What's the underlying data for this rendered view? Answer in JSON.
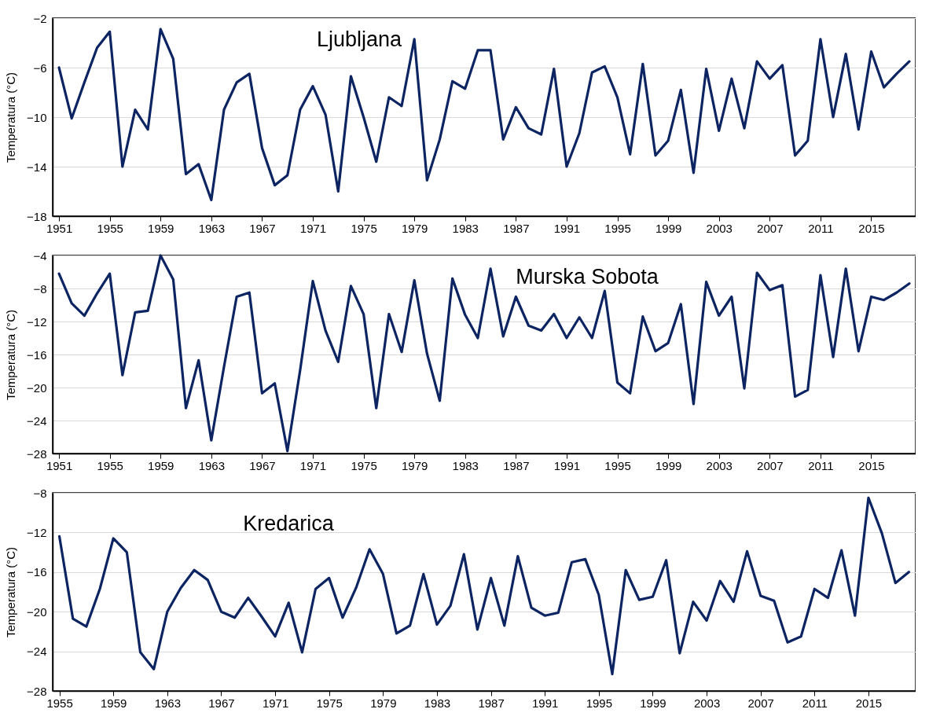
{
  "chart_data": [
    {
      "type": "line",
      "ylabel": "Temperatura (°C)",
      "annotations": [
        "Ljubljana"
      ],
      "grid": "y",
      "ylim": [
        -18,
        -2
      ],
      "yticks": [
        -18,
        -14,
        -10,
        -6,
        -2
      ],
      "color": "#0d2463",
      "categories": [
        "1951",
        null,
        null,
        null,
        "1955",
        null,
        null,
        null,
        "1959",
        null,
        null,
        null,
        "1963",
        null,
        null,
        null,
        "1967",
        null,
        null,
        null,
        "1971",
        null,
        null,
        null,
        "1975",
        null,
        null,
        null,
        "1979",
        null,
        null,
        null,
        "1983",
        null,
        null,
        null,
        "1987",
        null,
        null,
        null,
        "1991",
        null,
        null,
        null,
        "1995",
        null,
        null,
        null,
        "1999",
        null,
        null,
        null,
        "2003",
        null,
        null,
        null,
        "2007",
        null,
        null,
        null,
        "2011",
        null,
        null,
        null,
        "2015",
        null,
        null,
        null
      ],
      "values": [
        -6.0,
        -10.1,
        -7.2,
        -4.4,
        -3.1,
        -14.0,
        -9.4,
        -11.0,
        -2.9,
        -5.3,
        -14.6,
        -13.8,
        -16.7,
        -9.4,
        -7.2,
        -6.5,
        -12.5,
        -15.5,
        -14.7,
        -9.4,
        -7.5,
        -9.8,
        -16.0,
        -6.7,
        -10.0,
        -13.6,
        -8.4,
        -9.1,
        -3.7,
        -15.1,
        -11.8,
        -7.1,
        -7.7,
        -4.6,
        -4.6,
        -11.8,
        -9.2,
        -10.9,
        -11.4,
        -6.1,
        -14.0,
        -11.3,
        -6.4,
        -5.9,
        -8.4,
        -13.0,
        -5.7,
        -13.1,
        -11.9,
        -7.8,
        -14.5,
        -6.1,
        -11.1,
        -6.9,
        -10.9,
        -5.5,
        -6.9,
        -5.8,
        -13.1,
        -11.9,
        -3.7,
        -10.0,
        -4.9,
        -11.0,
        -4.7,
        -7.6,
        -6.5,
        -5.5
      ]
    },
    {
      "type": "line",
      "ylabel": "Temperatura (°C)",
      "annotations": [
        "Murska Sobota"
      ],
      "grid": "y",
      "ylim": [
        -28,
        -4
      ],
      "yticks": [
        -28,
        -24,
        -20,
        -16,
        -12,
        -8,
        -4
      ],
      "color": "#0d2463",
      "categories": [
        "1951",
        null,
        null,
        null,
        "1955",
        null,
        null,
        null,
        "1959",
        null,
        null,
        null,
        "1963",
        null,
        null,
        null,
        "1967",
        null,
        null,
        null,
        "1971",
        null,
        null,
        null,
        "1975",
        null,
        null,
        null,
        "1979",
        null,
        null,
        null,
        "1983",
        null,
        null,
        null,
        "1987",
        null,
        null,
        null,
        "1991",
        null,
        null,
        null,
        "1995",
        null,
        null,
        null,
        "1999",
        null,
        null,
        null,
        "2003",
        null,
        null,
        null,
        "2007",
        null,
        null,
        null,
        "2011",
        null,
        null,
        null,
        "2015",
        null,
        null,
        null
      ],
      "values": [
        -6.2,
        -9.8,
        -11.3,
        -8.6,
        -6.2,
        -18.5,
        -10.9,
        -10.7,
        -4.0,
        -6.9,
        -22.5,
        -16.7,
        -26.4,
        -17.5,
        -9.0,
        -8.5,
        -20.7,
        -19.5,
        -27.7,
        -17.9,
        -7.1,
        -13.1,
        -16.9,
        -7.7,
        -11.1,
        -22.5,
        -11.1,
        -15.7,
        -7.0,
        -15.9,
        -21.6,
        -6.8,
        -11.2,
        -14.0,
        -5.6,
        -13.8,
        -9.0,
        -12.5,
        -13.1,
        -11.1,
        -14.0,
        -11.5,
        -14.0,
        -8.3,
        -19.4,
        -20.7,
        -11.4,
        -15.6,
        -14.6,
        -9.9,
        -22.0,
        -7.2,
        -11.3,
        -9.0,
        -20.1,
        -6.1,
        -8.2,
        -7.6,
        -21.1,
        -20.3,
        -6.4,
        -16.3,
        -5.6,
        -15.6,
        -9.0,
        -9.4,
        -8.5,
        -7.4
      ]
    },
    {
      "type": "line",
      "ylabel": "Temperatura (°C)",
      "annotations": [
        "Kredarica"
      ],
      "grid": "y",
      "ylim": [
        -28,
        -8
      ],
      "yticks": [
        -28,
        -24,
        -20,
        -16,
        -12,
        -8
      ],
      "color": "#0d2463",
      "categories": [
        "1955",
        null,
        null,
        null,
        "1959",
        null,
        null,
        null,
        "1963",
        null,
        null,
        null,
        "1967",
        null,
        null,
        null,
        "1971",
        null,
        null,
        null,
        "1975",
        null,
        null,
        null,
        "1979",
        null,
        null,
        null,
        "1983",
        null,
        null,
        null,
        "1987",
        null,
        null,
        null,
        "1991",
        null,
        null,
        null,
        "1995",
        null,
        null,
        null,
        "1999",
        null,
        null,
        null,
        "2003",
        null,
        null,
        null,
        "2007",
        null,
        null,
        null,
        "2011",
        null,
        null,
        null,
        "2015",
        null,
        null,
        null
      ],
      "values": [
        -12.4,
        -20.7,
        -21.5,
        -17.7,
        -12.6,
        -14.0,
        -24.1,
        -25.8,
        -20.0,
        -17.6,
        -15.8,
        -16.8,
        -20.0,
        -20.6,
        -18.6,
        -20.5,
        -22.5,
        -19.1,
        -24.1,
        -17.7,
        -16.6,
        -20.6,
        -17.6,
        -13.7,
        -16.2,
        -22.2,
        -21.4,
        -16.2,
        -21.3,
        -19.4,
        -14.2,
        -21.8,
        -16.6,
        -21.4,
        -14.4,
        -19.6,
        -20.4,
        -20.1,
        -15.0,
        -14.7,
        -18.3,
        -26.3,
        -15.8,
        -18.8,
        -18.5,
        -14.8,
        -24.2,
        -19.0,
        -20.9,
        -16.9,
        -19.0,
        -13.9,
        -18.4,
        -18.9,
        -23.1,
        -22.5,
        -17.7,
        -18.6,
        -13.8,
        -20.4,
        -8.5,
        -12.1,
        -17.1,
        -16.0
      ]
    }
  ]
}
